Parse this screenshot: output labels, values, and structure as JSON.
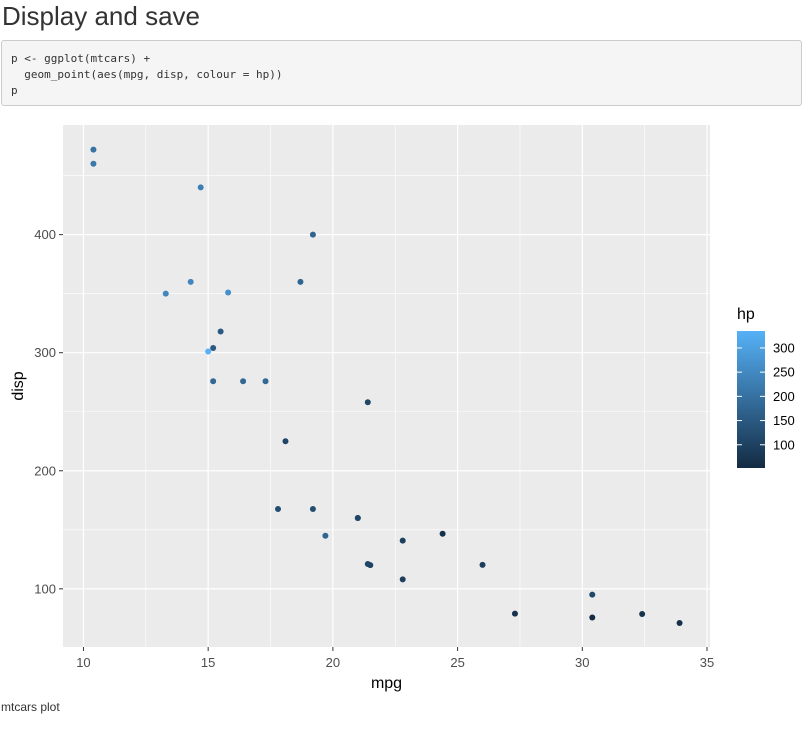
{
  "page": {
    "heading": "Display and save",
    "code_lines": [
      "p <- ggplot(mtcars) +",
      "  geom_point(aes(mpg, disp, colour = hp))",
      "p"
    ],
    "caption": "mtcars plot"
  },
  "colors": {
    "panel_background": "#ebebeb",
    "grid": "#ffffff",
    "low": "#132b43",
    "high": "#56b1f7"
  },
  "chart_data": {
    "type": "scatter",
    "title": "",
    "xlabel": "mpg",
    "ylabel": "disp",
    "xlim": [
      9.18,
      35.12
    ],
    "ylim": [
      50.75,
      492.85
    ],
    "x_ticks": [
      10,
      15,
      20,
      25,
      30,
      35
    ],
    "x_tick_labels": [
      "10",
      "15",
      "20",
      "25",
      "30",
      "35"
    ],
    "y_ticks": [
      100,
      200,
      300,
      400
    ],
    "y_tick_labels": [
      "100",
      "200",
      "300",
      "400"
    ],
    "grid": true,
    "legend": {
      "title": "hp",
      "position": "right",
      "type": "colorbar",
      "range": [
        52,
        335
      ],
      "breaks": [
        300,
        250,
        200,
        150,
        100
      ],
      "break_labels": [
        "300",
        "250",
        "200",
        "150",
        "100"
      ]
    },
    "points": [
      {
        "x": 21.0,
        "y": 160,
        "hp": 110
      },
      {
        "x": 21.0,
        "y": 160,
        "hp": 110
      },
      {
        "x": 22.8,
        "y": 108,
        "hp": 93
      },
      {
        "x": 21.4,
        "y": 258,
        "hp": 110
      },
      {
        "x": 18.7,
        "y": 360,
        "hp": 175
      },
      {
        "x": 18.1,
        "y": 225,
        "hp": 105
      },
      {
        "x": 14.3,
        "y": 360,
        "hp": 245
      },
      {
        "x": 24.4,
        "y": 146.7,
        "hp": 62
      },
      {
        "x": 22.8,
        "y": 140.8,
        "hp": 95
      },
      {
        "x": 19.2,
        "y": 167.6,
        "hp": 123
      },
      {
        "x": 17.8,
        "y": 167.6,
        "hp": 123
      },
      {
        "x": 16.4,
        "y": 275.8,
        "hp": 180
      },
      {
        "x": 17.3,
        "y": 275.8,
        "hp": 180
      },
      {
        "x": 15.2,
        "y": 275.8,
        "hp": 180
      },
      {
        "x": 10.4,
        "y": 472,
        "hp": 205
      },
      {
        "x": 10.4,
        "y": 460,
        "hp": 215
      },
      {
        "x": 14.7,
        "y": 440,
        "hp": 230
      },
      {
        "x": 32.4,
        "y": 78.7,
        "hp": 66
      },
      {
        "x": 30.4,
        "y": 75.7,
        "hp": 52
      },
      {
        "x": 33.9,
        "y": 71.1,
        "hp": 65
      },
      {
        "x": 21.5,
        "y": 120.1,
        "hp": 97
      },
      {
        "x": 15.5,
        "y": 318,
        "hp": 150
      },
      {
        "x": 15.2,
        "y": 304,
        "hp": 150
      },
      {
        "x": 13.3,
        "y": 350,
        "hp": 245
      },
      {
        "x": 19.2,
        "y": 400,
        "hp": 175
      },
      {
        "x": 27.3,
        "y": 79,
        "hp": 66
      },
      {
        "x": 26.0,
        "y": 120.3,
        "hp": 91
      },
      {
        "x": 30.4,
        "y": 95.1,
        "hp": 113
      },
      {
        "x": 15.8,
        "y": 351,
        "hp": 264
      },
      {
        "x": 19.7,
        "y": 145,
        "hp": 175
      },
      {
        "x": 15.0,
        "y": 301,
        "hp": 335
      },
      {
        "x": 21.4,
        "y": 121,
        "hp": 109
      }
    ]
  }
}
